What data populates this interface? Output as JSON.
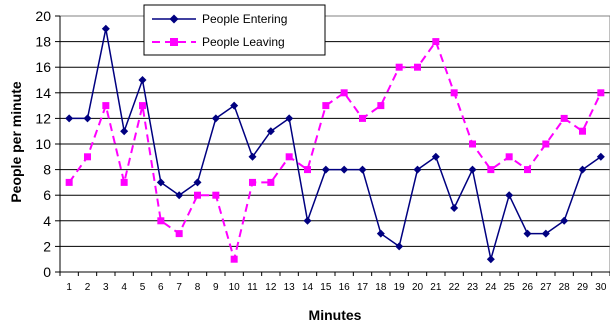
{
  "chart_data": {
    "type": "line",
    "title": "",
    "xlabel": "Minutes",
    "ylabel": "People per minute",
    "x": [
      1,
      2,
      3,
      4,
      5,
      6,
      7,
      8,
      9,
      10,
      11,
      12,
      13,
      14,
      15,
      16,
      17,
      18,
      19,
      20,
      21,
      22,
      23,
      24,
      25,
      26,
      27,
      28,
      29,
      30
    ],
    "ylim": [
      0,
      20
    ],
    "yticks": [
      0,
      2,
      4,
      6,
      8,
      10,
      12,
      14,
      16,
      18,
      20
    ],
    "grid": true,
    "legend_position": "top-center",
    "series": [
      {
        "name": "People Entering",
        "color": "#000080",
        "marker": "diamond",
        "line_style": "solid",
        "values": [
          12,
          12,
          19,
          11,
          15,
          7,
          6,
          7,
          12,
          13,
          9,
          11,
          12,
          4,
          8,
          8,
          8,
          3,
          2,
          8,
          9,
          5,
          8,
          1,
          6,
          3,
          3,
          4,
          8,
          9
        ]
      },
      {
        "name": "People Leaving",
        "color": "#ff00ff",
        "marker": "square",
        "line_style": "dashed",
        "values": [
          7,
          9,
          13,
          7,
          13,
          4,
          3,
          6,
          6,
          1,
          7,
          7,
          9,
          8,
          13,
          14,
          12,
          13,
          16,
          16,
          18,
          14,
          10,
          8,
          9,
          8,
          10,
          12,
          11,
          14
        ]
      }
    ]
  }
}
